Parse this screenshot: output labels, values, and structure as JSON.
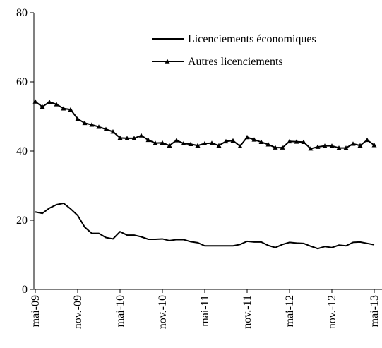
{
  "chart_data": {
    "type": "line",
    "categories": [
      "mai-09",
      null,
      null,
      null,
      null,
      null,
      "nov.-09",
      null,
      null,
      null,
      null,
      null,
      "mai-10",
      null,
      null,
      null,
      null,
      null,
      "nov.-10",
      null,
      null,
      null,
      null,
      null,
      "mai-11",
      null,
      null,
      null,
      null,
      null,
      "nov.-11",
      null,
      null,
      null,
      null,
      null,
      "mai-12",
      null,
      null,
      null,
      null,
      null,
      "nov.-12",
      null,
      null,
      null,
      null,
      null,
      "mai-13"
    ],
    "series": [
      {
        "name": "Licenciements économiques",
        "color": "#000000",
        "marker": "none",
        "values": [
          22.4,
          22,
          23.5,
          24.5,
          24.9,
          23.3,
          21.4,
          18,
          16.2,
          16.2,
          15,
          14.6,
          16.7,
          15.7,
          15.7,
          15.2,
          14.5,
          14.5,
          14.6,
          14.1,
          14.4,
          14.4,
          13.8,
          13.5,
          12.6,
          12.6,
          12.6,
          12.6,
          12.6,
          13,
          13.9,
          13.7,
          13.7,
          12.7,
          12.1,
          13,
          13.6,
          13.4,
          13.3,
          12.5,
          11.8,
          12.4,
          12.1,
          12.8,
          12.6,
          13.6,
          13.7,
          13.3,
          12.9
        ]
      },
      {
        "name": "Autres licenciements",
        "color": "#000000",
        "marker": "triangle",
        "values": [
          54.3,
          52.8,
          54.2,
          53.5,
          52.3,
          52,
          49.3,
          48.1,
          47.6,
          47,
          46.3,
          45.6,
          43.8,
          43.7,
          43.7,
          44.5,
          43.2,
          42.3,
          42.4,
          41.6,
          43.1,
          42.2,
          42,
          41.6,
          42.2,
          42.3,
          41.6,
          42.8,
          43,
          41.4,
          44,
          43.3,
          42.6,
          41.9,
          41,
          41,
          42.8,
          42.7,
          42.6,
          40.7,
          41.2,
          41.5,
          41.5,
          40.9,
          40.9,
          42.1,
          41.6,
          43.2,
          41.7
        ]
      }
    ],
    "ylim": [
      0,
      80
    ],
    "yticks": [
      0,
      20,
      40,
      60,
      80
    ],
    "grid": false,
    "legend": "upper right"
  }
}
